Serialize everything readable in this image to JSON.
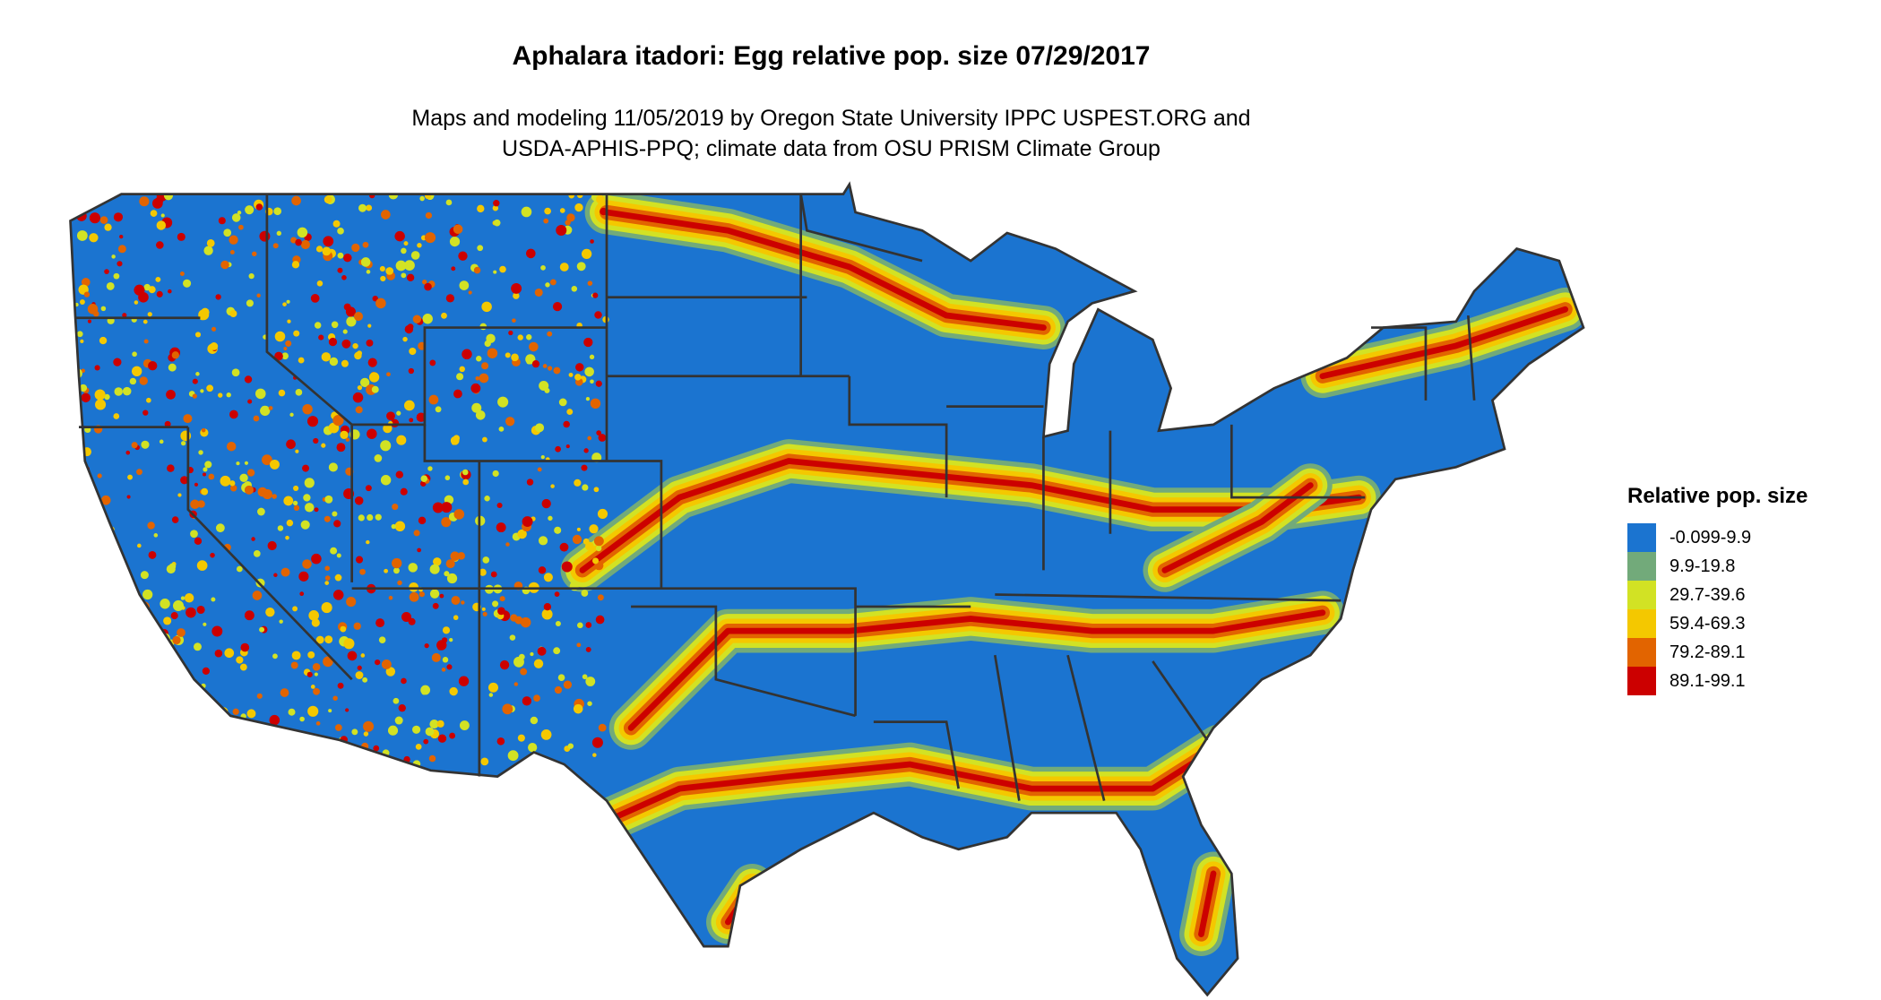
{
  "title": "Aphalara itadori: Egg relative pop. size 07/29/2017",
  "subtitle_lines": [
    "Maps and modeling 11/05/2019 by Oregon State University IPPC USPEST.ORG and",
    "USDA-APHIS-PPQ; climate data from OSU PRISM Climate Group"
  ],
  "legend": {
    "title": "Relative pop. size",
    "items": [
      {
        "label": "-0.099-9.9",
        "color": "#1b74d0"
      },
      {
        "label": "9.9-19.8",
        "color": "#72aa7a"
      },
      {
        "label": "29.7-39.6",
        "color": "#d2e224"
      },
      {
        "label": "59.4-69.3",
        "color": "#f4c800"
      },
      {
        "label": "79.2-89.1",
        "color": "#e26400"
      },
      {
        "label": "89.1-99.1",
        "color": "#cc0000"
      }
    ]
  },
  "map": {
    "region": "Contiguous United States",
    "border_color": "#333333"
  }
}
